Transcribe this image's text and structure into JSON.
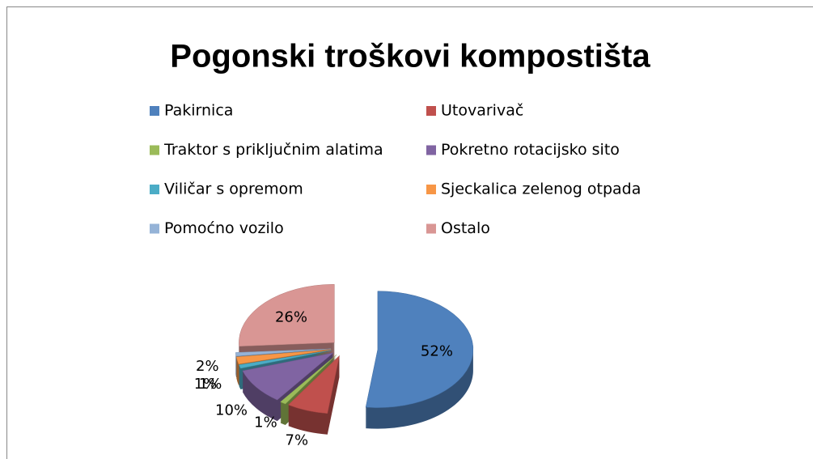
{
  "chart_data": {
    "type": "pie",
    "title": "Pogonski troškovi kompostišta",
    "categories": [
      "Pakirnica",
      "Utovarivač",
      "Traktor s priključnim alatima",
      "Pokretno rotacijsko sito",
      "Viličar s opremom",
      "Sjeckalica zelenog otpada",
      "Pomoćno vozilo",
      "Ostalo"
    ],
    "values": [
      52,
      7,
      1,
      10,
      1,
      2,
      1,
      26
    ],
    "value_labels": [
      "52%",
      "7%",
      "1%",
      "10%",
      "1%",
      "2%",
      "1%",
      "26%"
    ],
    "colors": [
      "#4f81bd",
      "#c0504d",
      "#9bbb59",
      "#8064a2",
      "#4bacc6",
      "#f79646",
      "#95b3d7",
      "#d99694"
    ],
    "legend": "top"
  }
}
